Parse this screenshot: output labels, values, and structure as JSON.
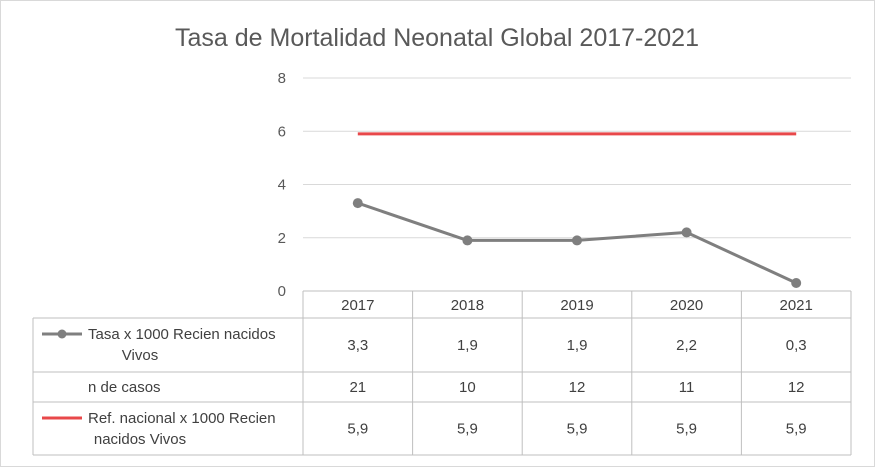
{
  "chart_data": {
    "type": "line",
    "title": "Tasa de Mortalidad Neonatal Global 2017-2021",
    "categories": [
      "2017",
      "2018",
      "2019",
      "2020",
      "2021"
    ],
    "ylim": [
      0,
      8
    ],
    "yticks": [
      "0",
      "2",
      "4",
      "6",
      "8"
    ],
    "grid": true,
    "series": [
      {
        "name": "Tasa x 1000 Recien nacidos Vivos",
        "values": [
          3.3,
          1.9,
          1.9,
          2.2,
          0.3
        ],
        "labels": [
          "3,3",
          "1,9",
          "1,9",
          "2,2",
          "0,3"
        ],
        "color": "#7f7f7f",
        "marker": "circle"
      },
      {
        "name": "Ref. nacional x 1000 Recien nacidos Vivos",
        "values": [
          5.9,
          5.9,
          5.9,
          5.9,
          5.9
        ],
        "labels": [
          "5,9",
          "5,9",
          "5,9",
          "5,9",
          "5,9"
        ],
        "color": "#e8484a",
        "marker": "none"
      }
    ],
    "data_table": {
      "rows": [
        {
          "label": "Tasa x 1000 Recien nacidos Vivos",
          "legend_series": 0,
          "values": [
            "3,3",
            "1,9",
            "1,9",
            "2,2",
            "0,3"
          ]
        },
        {
          "label": "n de casos",
          "legend_series": null,
          "values": [
            "21",
            "10",
            "12",
            "11",
            "12"
          ]
        },
        {
          "label": "Ref. nacional x 1000 Recien nacidos Vivos",
          "legend_series": 1,
          "values": [
            "5,9",
            "5,9",
            "5,9",
            "5,9",
            "5,9"
          ]
        }
      ]
    }
  }
}
